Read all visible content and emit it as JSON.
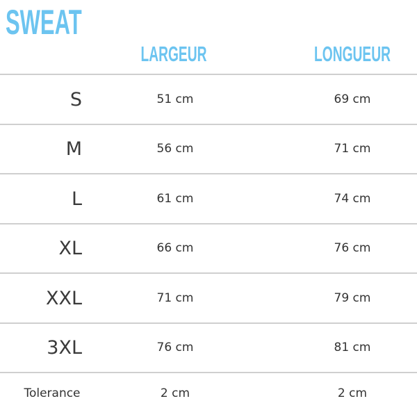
{
  "title": "SWEAT",
  "accent_color": "#6cc4f0",
  "columns": [
    "LARGEUR",
    "LONGUEUR"
  ],
  "rows": [
    {
      "size": "S",
      "largeur": "51 cm",
      "longueur": "69 cm"
    },
    {
      "size": "M",
      "largeur": "56 cm",
      "longueur": "71 cm"
    },
    {
      "size": "L",
      "largeur": "61 cm",
      "longueur": "74 cm"
    },
    {
      "size": "XL",
      "largeur": "66 cm",
      "longueur": "76 cm"
    },
    {
      "size": "XXL",
      "largeur": "71 cm",
      "longueur": "79 cm"
    },
    {
      "size": "3XL",
      "largeur": "76 cm",
      "longueur": "81 cm"
    }
  ],
  "tolerance": {
    "label": "Tolerance",
    "largeur": "2 cm",
    "longueur": "2 cm"
  }
}
